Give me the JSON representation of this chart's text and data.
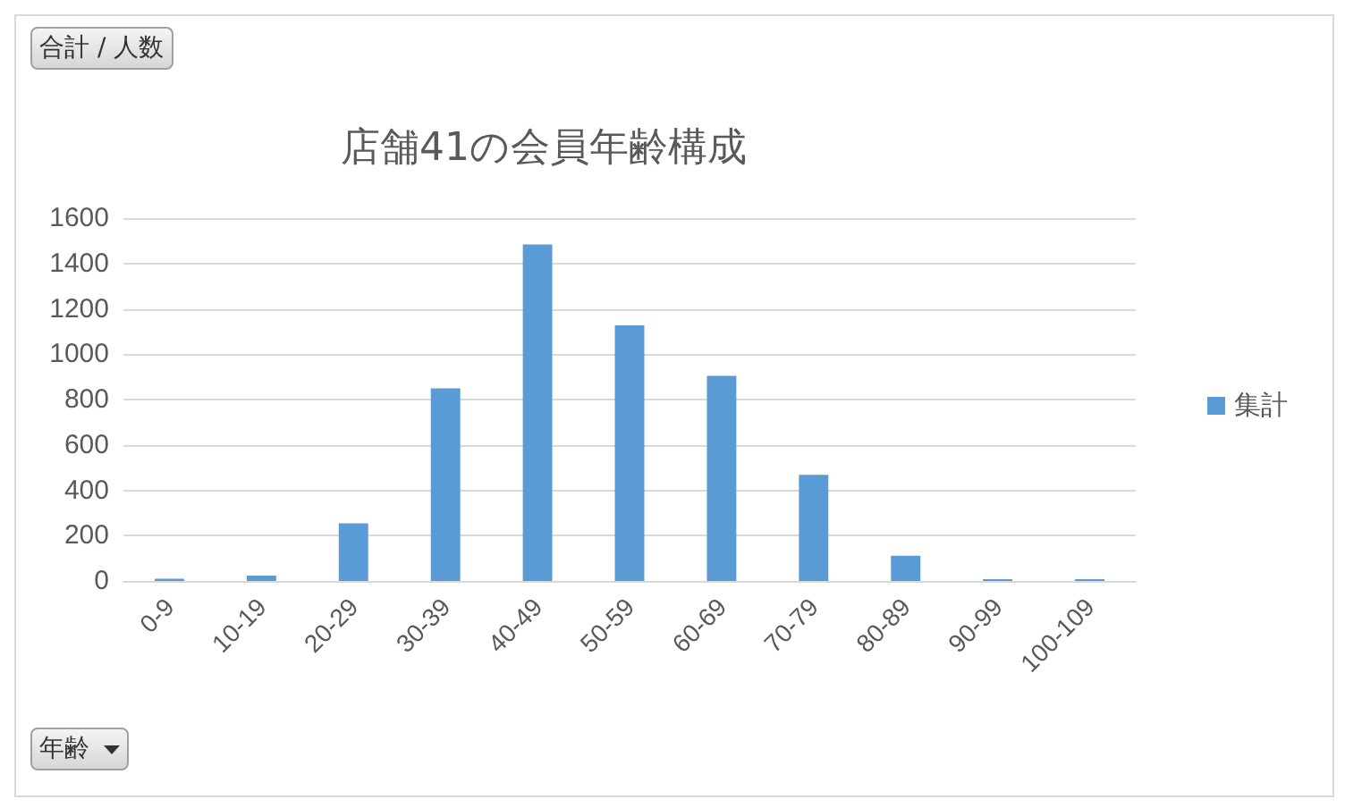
{
  "chart_data": {
    "type": "bar",
    "title": "店舗41の会員年齢構成",
    "categories": [
      "0-9",
      "10-19",
      "20-29",
      "30-39",
      "40-49",
      "50-59",
      "60-69",
      "70-79",
      "80-89",
      "90-99",
      "100-109"
    ],
    "series": [
      {
        "name": "集計",
        "color": "#5b9bd5",
        "values": [
          10,
          24,
          254,
          849,
          1484,
          1127,
          904,
          468,
          111,
          8,
          8
        ]
      }
    ],
    "ylim": [
      0,
      1600
    ],
    "yticks": [
      0,
      200,
      400,
      600,
      800,
      1000,
      1200,
      1400,
      1600
    ],
    "grid": "y",
    "legend": "right",
    "annotations": [
      "合計 / 人数",
      "年齢"
    ]
  }
}
